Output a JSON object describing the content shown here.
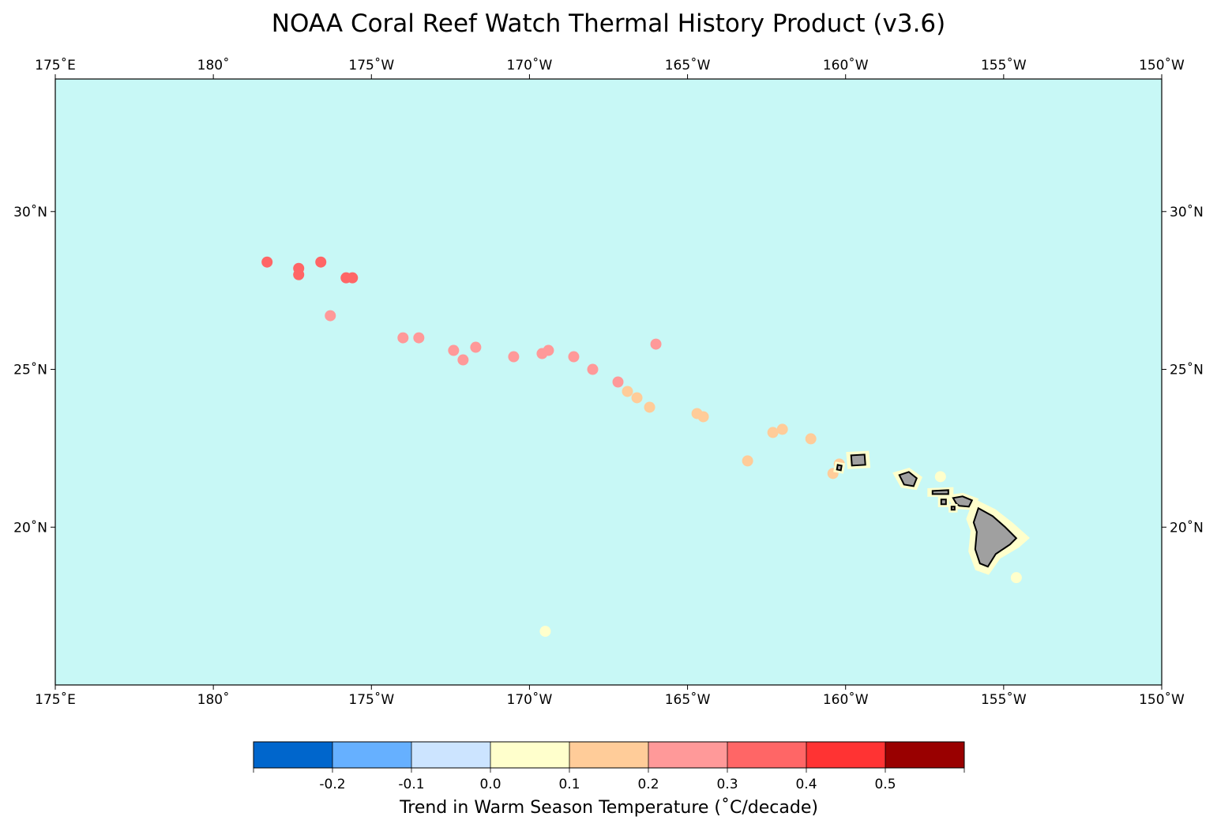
{
  "title": "NOAA Coral Reef Watch Thermal History Product (v3.6)",
  "map": {
    "lon_range": [
      175,
      210
    ],
    "lat_range": [
      15.0,
      34.2
    ],
    "ocean_color": "#c8f8f6",
    "land_color": "#a0a0a0",
    "lon_ticks": [
      {
        "value": 175,
        "label": "175˚E"
      },
      {
        "value": 180,
        "label": "180˚"
      },
      {
        "value": 185,
        "label": "175˚W"
      },
      {
        "value": 190,
        "label": "170˚W"
      },
      {
        "value": 195,
        "label": "165˚W"
      },
      {
        "value": 200,
        "label": "160˚W"
      },
      {
        "value": 205,
        "label": "155˚W"
      },
      {
        "value": 210,
        "label": "150˚W"
      }
    ],
    "lat_ticks": [
      {
        "value": 20,
        "label": "20˚N"
      },
      {
        "value": 25,
        "label": "25˚N"
      },
      {
        "value": 30,
        "label": "30˚N"
      }
    ],
    "reef_trends": [
      {
        "lon": 181.7,
        "lat": 28.4,
        "trend": 0.35
      },
      {
        "lon": 182.7,
        "lat": 28.2,
        "trend": 0.35
      },
      {
        "lon": 182.7,
        "lat": 28.0,
        "trend": 0.35
      },
      {
        "lon": 183.4,
        "lat": 28.4,
        "trend": 0.35
      },
      {
        "lon": 184.2,
        "lat": 27.9,
        "trend": 0.35
      },
      {
        "lon": 184.4,
        "lat": 27.9,
        "trend": 0.35
      },
      {
        "lon": 183.7,
        "lat": 26.7,
        "trend": 0.25
      },
      {
        "lon": 186.0,
        "lat": 26.0,
        "trend": 0.25
      },
      {
        "lon": 186.5,
        "lat": 26.0,
        "trend": 0.25
      },
      {
        "lon": 187.6,
        "lat": 25.6,
        "trend": 0.25
      },
      {
        "lon": 187.9,
        "lat": 25.3,
        "trend": 0.25
      },
      {
        "lon": 188.3,
        "lat": 25.7,
        "trend": 0.25
      },
      {
        "lon": 189.5,
        "lat": 25.4,
        "trend": 0.25
      },
      {
        "lon": 190.4,
        "lat": 25.5,
        "trend": 0.25
      },
      {
        "lon": 190.6,
        "lat": 25.6,
        "trend": 0.25
      },
      {
        "lon": 191.4,
        "lat": 25.4,
        "trend": 0.25
      },
      {
        "lon": 192.0,
        "lat": 25.0,
        "trend": 0.25
      },
      {
        "lon": 192.8,
        "lat": 24.6,
        "trend": 0.25
      },
      {
        "lon": 193.1,
        "lat": 24.3,
        "trend": 0.15
      },
      {
        "lon": 193.4,
        "lat": 24.1,
        "trend": 0.15
      },
      {
        "lon": 193.8,
        "lat": 23.8,
        "trend": 0.15
      },
      {
        "lon": 194.0,
        "lat": 25.8,
        "trend": 0.25
      },
      {
        "lon": 195.3,
        "lat": 23.6,
        "trend": 0.15
      },
      {
        "lon": 195.5,
        "lat": 23.5,
        "trend": 0.15
      },
      {
        "lon": 196.9,
        "lat": 22.1,
        "trend": 0.15
      },
      {
        "lon": 197.7,
        "lat": 23.0,
        "trend": 0.15
      },
      {
        "lon": 198.0,
        "lat": 23.1,
        "trend": 0.15
      },
      {
        "lon": 198.9,
        "lat": 22.8,
        "trend": 0.15
      },
      {
        "lon": 199.6,
        "lat": 21.7,
        "trend": 0.15
      },
      {
        "lon": 199.8,
        "lat": 22.0,
        "trend": 0.15
      },
      {
        "lon": 190.5,
        "lat": 16.7,
        "trend": 0.05
      },
      {
        "lon": 205.4,
        "lat": 18.4,
        "trend": 0.05
      },
      {
        "lon": 203.0,
        "lat": 21.6,
        "trend": 0.05
      }
    ],
    "islands": [
      {
        "name": "Niihau",
        "lon": 199.8,
        "lat": 21.9
      },
      {
        "name": "Kauai",
        "lon": 200.4,
        "lat": 22.1
      },
      {
        "name": "Oahu",
        "lon": 202.0,
        "lat": 21.5
      },
      {
        "name": "Molokai",
        "lon": 203.0,
        "lat": 21.1
      },
      {
        "name": "Lanai",
        "lon": 203.1,
        "lat": 20.8
      },
      {
        "name": "Maui",
        "lon": 203.7,
        "lat": 20.8
      },
      {
        "name": "Kahoolawe",
        "lon": 203.4,
        "lat": 20.6
      },
      {
        "name": "Hawaii",
        "lon": 204.5,
        "lat": 19.6
      }
    ]
  },
  "colorbar": {
    "label": "Trend in Warm Season Temperature (˚C/decade)",
    "bins": [
      {
        "color": "#0066cc"
      },
      {
        "color": "#66b0ff"
      },
      {
        "color": "#cce4ff"
      },
      {
        "color": "#ffffcc"
      },
      {
        "color": "#ffcc99"
      },
      {
        "color": "#ff9999"
      },
      {
        "color": "#ff6666"
      },
      {
        "color": "#ff3333"
      },
      {
        "color": "#990000"
      }
    ],
    "tick_labels": [
      "-0.2",
      "-0.1",
      "0.0",
      "0.1",
      "0.2",
      "0.3",
      "0.4",
      "0.5"
    ]
  }
}
